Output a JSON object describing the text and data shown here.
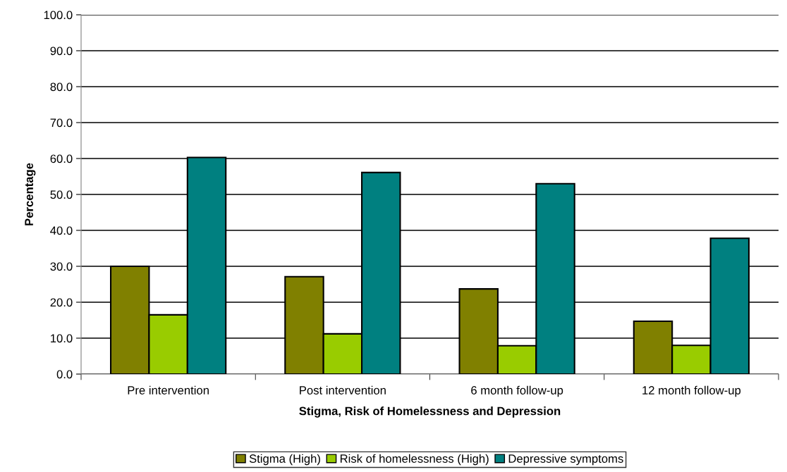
{
  "chart_data": {
    "type": "bar",
    "xlabel": "Stigma, Risk of Homelessness and Depression",
    "ylabel": "Percentage",
    "categories": [
      "Pre intervention",
      "Post intervention",
      "6 month follow-up",
      "12 month follow-up"
    ],
    "series": [
      {
        "name": "Stigma (High)",
        "color": "#808000",
        "values": [
          30.0,
          27.1,
          23.7,
          14.7
        ]
      },
      {
        "name": "Risk of homelessness (High)",
        "color": "#99cc00",
        "values": [
          16.5,
          11.2,
          7.9,
          8.0
        ]
      },
      {
        "name": "Depressive symptoms",
        "color": "#008080",
        "values": [
          60.3,
          56.1,
          53.0,
          37.8
        ]
      }
    ],
    "ylim": [
      0,
      100
    ],
    "yticks": [
      {
        "value": 0,
        "label": "0.0"
      },
      {
        "value": 10,
        "label": "10.0"
      },
      {
        "value": 20,
        "label": "20.0"
      },
      {
        "value": 30,
        "label": "30.0"
      },
      {
        "value": 40,
        "label": "40.0"
      },
      {
        "value": 50,
        "label": "50.0"
      },
      {
        "value": 60,
        "label": "60.0"
      },
      {
        "value": 70,
        "label": "70.0"
      },
      {
        "value": 80,
        "label": "80.0"
      },
      {
        "value": 90,
        "label": "90.0"
      },
      {
        "value": 100,
        "label": "100.0"
      }
    ],
    "grid": "y",
    "legend": "bottom"
  }
}
